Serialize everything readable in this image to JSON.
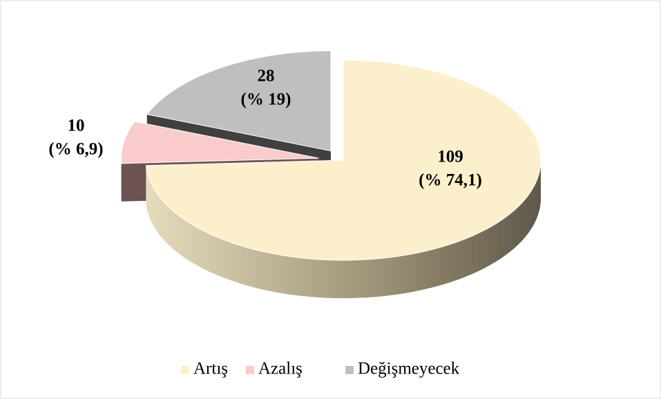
{
  "chart_data": {
    "type": "pie3d",
    "categories": [
      "Artış",
      "Azalış",
      "Değişmeyecek"
    ],
    "values": [
      109,
      10,
      28
    ],
    "value_labels": [
      "109",
      "10",
      "28"
    ],
    "percentages": [
      74.1,
      6.9,
      19
    ],
    "percentage_labels": [
      "(% 74,1)",
      "(% 6,9)",
      "(% 19)"
    ],
    "colors": [
      "#fcefcc",
      "#f9cbcb",
      "#bfbfbf"
    ],
    "legend": "bottom"
  }
}
